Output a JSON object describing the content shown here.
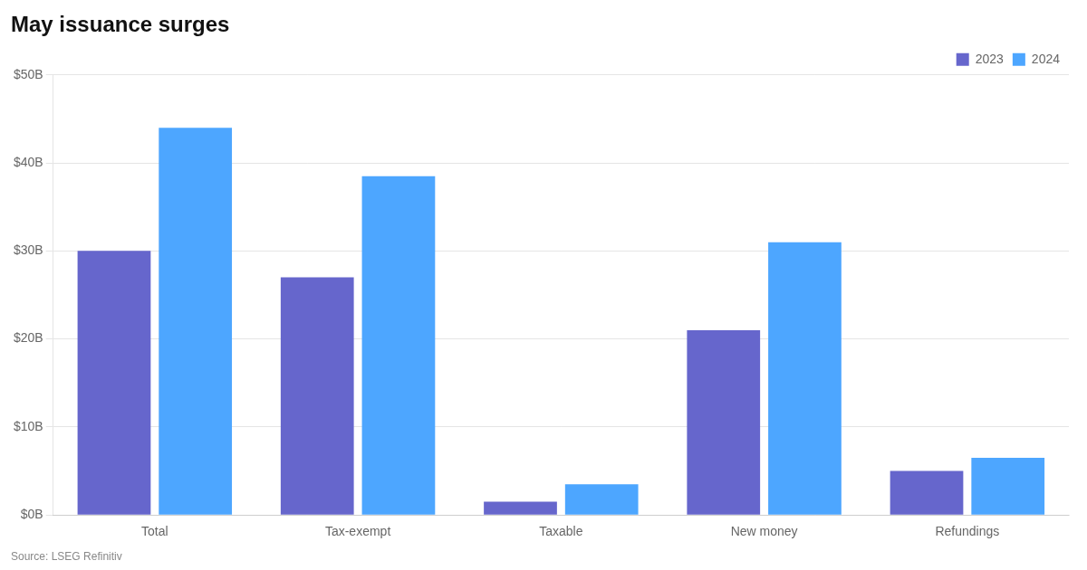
{
  "chart_data": {
    "type": "bar",
    "title": "May issuance surges",
    "categories": [
      "Total",
      "Tax-exempt",
      "Taxable",
      "New money",
      "Refundings"
    ],
    "series": [
      {
        "name": "2023",
        "color": "#6666cc",
        "values": [
          30,
          27,
          1.5,
          21,
          5
        ]
      },
      {
        "name": "2024",
        "color": "#4da6ff",
        "values": [
          44,
          38.5,
          3.5,
          31,
          6.5
        ]
      }
    ],
    "ylim": [
      0,
      50
    ],
    "yticks": [
      {
        "value": 0,
        "label": "$0B"
      },
      {
        "value": 10,
        "label": "$10B"
      },
      {
        "value": 20,
        "label": "$20B"
      },
      {
        "value": 30,
        "label": "$30B"
      },
      {
        "value": 40,
        "label": "$40B"
      },
      {
        "value": 50,
        "label": "$50B"
      }
    ],
    "grid": true,
    "legend": "upper right",
    "annotations": [
      "Source: LSEG Refinitiv"
    ]
  }
}
